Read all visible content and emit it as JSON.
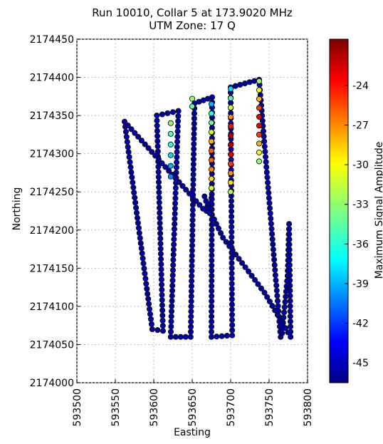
{
  "chart_data": {
    "type": "scatter",
    "title": "Run 10010, Collar 5 at 173.9020 MHz",
    "subtitle": "UTM Zone: 17 Q",
    "xlabel": "Easting",
    "ylabel": "Northing",
    "xlim": [
      593500,
      593800
    ],
    "ylim": [
      2174000,
      2174450
    ],
    "xticks": [
      "593500",
      "593550",
      "593600",
      "593650",
      "593700",
      "593750",
      "593800"
    ],
    "yticks": [
      "2174000",
      "2174050",
      "2174100",
      "2174150",
      "2174200",
      "2174250",
      "2174300",
      "2174350",
      "2174400",
      "2174450"
    ],
    "grid": true,
    "colorbar": {
      "label": "Maximum Signal Amplitude",
      "range": [
        -46.5,
        -20.5
      ],
      "ticks": [
        "-24",
        "-27",
        "-30",
        "-33",
        "-36",
        "-39",
        "-42",
        "-45"
      ],
      "colormap": "jet"
    },
    "track": [
      [
        593562,
        2174342
      ],
      [
        593598,
        2174070
      ],
      [
        593612,
        2174068
      ],
      [
        593604,
        2174350
      ],
      [
        593632,
        2174356
      ],
      [
        593622,
        2174060
      ],
      [
        593648,
        2174060
      ],
      [
        593653,
        2174366
      ],
      [
        593676,
        2174374
      ],
      [
        593675,
        2174060
      ],
      [
        593702,
        2174062
      ],
      [
        593700,
        2174387
      ],
      [
        593737,
        2174397
      ],
      [
        593765,
        2174060
      ],
      [
        593767,
        2174065
      ],
      [
        593774,
        2174140
      ],
      [
        593776,
        2174208
      ],
      [
        593778,
        2174060
      ],
      [
        593744,
        2174118
      ],
      [
        593690,
        2174190
      ],
      [
        593670,
        2174232
      ],
      [
        593666,
        2174244
      ],
      [
        593675,
        2174242
      ],
      [
        593673,
        2174222
      ],
      [
        593664,
        2174228
      ],
      [
        593562,
        2174342
      ]
    ],
    "hotspots": [
      {
        "x": 593622,
        "y1": 2174270,
        "y2": 2174340,
        "values": [
          -40,
          -39,
          -38,
          -36,
          -35,
          -33
        ]
      },
      {
        "x": 593650,
        "y1": 2174362,
        "y2": 2174372,
        "values": [
          -34,
          -33
        ]
      },
      {
        "x": 593675,
        "y1": 2174255,
        "y2": 2174365,
        "values": [
          -31,
          -29,
          -27,
          -26,
          -26,
          -28,
          -31,
          -34,
          -36,
          -39
        ]
      },
      {
        "x": 593700,
        "y1": 2174250,
        "y2": 2174385,
        "values": [
          -32,
          -29,
          -27,
          -25,
          -23,
          -22,
          -22,
          -24,
          -27,
          -31,
          -35,
          -38
        ]
      },
      {
        "x": 593737,
        "y1": 2174290,
        "y2": 2174395,
        "values": [
          -33,
          -30,
          -28,
          -25,
          -23,
          -23,
          -25,
          -28,
          -30,
          -33
        ]
      }
    ],
    "baseline_value": -45.5
  }
}
